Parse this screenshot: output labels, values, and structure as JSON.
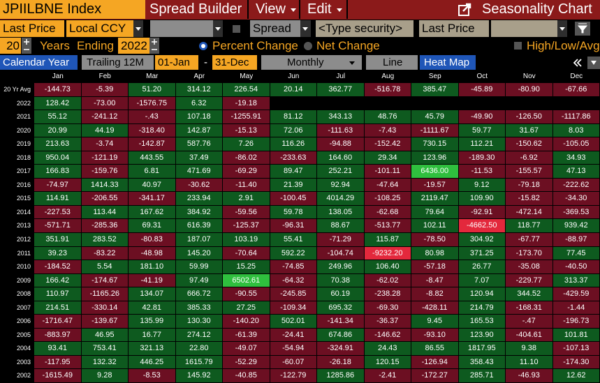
{
  "toolbar": {
    "security": "JPIILBNE Index",
    "spread_builder": "Spread Builder",
    "view": "View",
    "edit": "Edit",
    "title": "Seasonality Chart"
  },
  "settings": {
    "price_field": "Last Price",
    "currency": "Local CCY",
    "spread": "Spread",
    "security_input": "<Type security>",
    "spread_price_field": "Last Price"
  },
  "period": {
    "years": "20",
    "years_label": "Years",
    "ending_label": "Ending",
    "ending_year": "2022",
    "percent_change": "Percent Change",
    "net_change": "Net Change",
    "high_low_avg": "High/Low/Avg"
  },
  "view_mode": {
    "calendar_year": "Calendar Year",
    "trailing": "Trailing 12M",
    "start": "01-Jan",
    "dash": "-",
    "end": "31-Dec",
    "frequency": "Monthly",
    "line": "Line",
    "heat_map": "Heat Map"
  },
  "table": {
    "columns": [
      "Jan",
      "Feb",
      "Mar",
      "Apr",
      "May",
      "Jun",
      "Jul",
      "Aug",
      "Sep",
      "Oct",
      "Nov",
      "Dec"
    ],
    "rows": [
      {
        "label": "20 Yr Avg",
        "values": [
          "-144.73",
          "-5.39",
          "51.20",
          "314.12",
          "226.54",
          "20.14",
          "362.77",
          "-516.78",
          "385.47",
          "-45.89",
          "-80.90",
          "-67.66"
        ]
      },
      {
        "label": "2022",
        "values": [
          "128.42",
          "-73.00",
          "-1576.75",
          "6.32",
          "-19.18"
        ]
      },
      {
        "label": "2021",
        "values": [
          "55.12",
          "-241.12",
          "-.43",
          "107.18",
          "-1255.91",
          "81.12",
          "343.13",
          "48.76",
          "45.79",
          "-49.90",
          "-126.50",
          "-1117.86"
        ]
      },
      {
        "label": "2020",
        "values": [
          "20.99",
          "44.19",
          "-318.40",
          "142.87",
          "-15.13",
          "72.06",
          "-111.63",
          "-7.43",
          "-1111.67",
          "59.77",
          "31.67",
          "8.03"
        ]
      },
      {
        "label": "2019",
        "values": [
          "213.63",
          "-3.74",
          "-142.87",
          "587.76",
          "7.26",
          "116.26",
          "-94.88",
          "-152.42",
          "730.15",
          "112.21",
          "-150.62",
          "-105.05"
        ]
      },
      {
        "label": "2018",
        "values": [
          "950.04",
          "-121.19",
          "443.55",
          "37.49",
          "-86.02",
          "-233.63",
          "164.60",
          "29.34",
          "123.96",
          "-189.30",
          "-6.92",
          "34.93"
        ]
      },
      {
        "label": "2017",
        "values": [
          "166.83",
          "-159.76",
          "6.81",
          "471.69",
          "-69.29",
          "89.47",
          "252.21",
          "-101.11",
          "6436.00",
          "-11.53",
          "-155.57",
          "47.13"
        ]
      },
      {
        "label": "2016",
        "values": [
          "-74.97",
          "1414.33",
          "40.97",
          "-30.62",
          "-11.40",
          "21.39",
          "92.94",
          "-47.64",
          "-19.57",
          "9.12",
          "-79.18",
          "-222.62"
        ]
      },
      {
        "label": "2015",
        "values": [
          "114.91",
          "-206.55",
          "-341.17",
          "233.94",
          "2.91",
          "-100.45",
          "4014.29",
          "-108.25",
          "2119.47",
          "109.90",
          "-15.82",
          "-34.30"
        ]
      },
      {
        "label": "2014",
        "values": [
          "-227.53",
          "113.44",
          "167.62",
          "384.92",
          "-59.56",
          "59.78",
          "138.05",
          "-62.68",
          "79.64",
          "-92.91",
          "-472.14",
          "-369.53"
        ]
      },
      {
        "label": "2013",
        "values": [
          "-571.71",
          "-285.36",
          "69.31",
          "616.39",
          "-125.37",
          "-96.31",
          "88.67",
          "-513.77",
          "102.11",
          "-4662.50",
          "118.77",
          "939.42"
        ]
      },
      {
        "label": "2012",
        "values": [
          "351.91",
          "283.52",
          "-80.83",
          "187.07",
          "103.19",
          "55.41",
          "-71.29",
          "115.87",
          "-78.50",
          "304.92",
          "-67.77",
          "-88.97"
        ]
      },
      {
        "label": "2011",
        "values": [
          "39.23",
          "-83.22",
          "-48.98",
          "145.20",
          "-70.64",
          "592.22",
          "-104.74",
          "-9232.20",
          "80.98",
          "371.25",
          "-173.70",
          "77.45"
        ]
      },
      {
        "label": "2010",
        "values": [
          "-184.52",
          "5.54",
          "181.10",
          "59.99",
          "15.25",
          "-74.85",
          "249.96",
          "106.40",
          "-57.18",
          "26.77",
          "-35.08",
          "-40.50"
        ]
      },
      {
        "label": "2009",
        "values": [
          "166.42",
          "-174.67",
          "-41.19",
          "97.49",
          "6502.61",
          "-64.32",
          "70.38",
          "-62.02",
          "-8.47",
          "7.07",
          "-229.77",
          "313.37"
        ]
      },
      {
        "label": "2008",
        "values": [
          "110.97",
          "-1165.26",
          "134.07",
          "666.72",
          "-90.55",
          "-245.85",
          "60.19",
          "-238.28",
          "-8.82",
          "120.94",
          "344.52",
          "-429.59"
        ]
      },
      {
        "label": "2007",
        "values": [
          "214.51",
          "-330.14",
          "42.81",
          "385.33",
          "27.25",
          "-109.34",
          "695.32",
          "-69.30",
          "-428.11",
          "214.79",
          "-168.31",
          "-1.44"
        ]
      },
      {
        "label": "2006",
        "values": [
          "-1716.47",
          "-139.67",
          "135.99",
          "130.30",
          "-140.20",
          "502.01",
          "-141.34",
          "-36.37",
          "9.45",
          "165.53",
          "-.47",
          "-196.73"
        ]
      },
      {
        "label": "2005",
        "values": [
          "-883.97",
          "46.95",
          "16.77",
          "274.12",
          "-61.39",
          "-24.41",
          "674.86",
          "-146.62",
          "-93.10",
          "123.90",
          "-404.61",
          "101.81"
        ]
      },
      {
        "label": "2004",
        "values": [
          "93.41",
          "753.41",
          "321.13",
          "22.80",
          "-49.07",
          "-54.94",
          "-324.91",
          "24.43",
          "86.55",
          "1817.95",
          "9.38",
          "-107.13"
        ]
      },
      {
        "label": "2003",
        "values": [
          "-117.95",
          "132.32",
          "446.25",
          "1615.79",
          "-52.29",
          "-60.07",
          "-26.18",
          "120.15",
          "-126.94",
          "358.43",
          "11.10",
          "-174.30"
        ]
      },
      {
        "label": "2002",
        "values": [
          "-1615.49",
          "9.28",
          "-8.53",
          "145.92",
          "-40.85",
          "-122.79",
          "1285.86",
          "-2.41",
          "-172.27",
          "285.71",
          "-46.93",
          "12.62"
        ]
      }
    ]
  }
}
